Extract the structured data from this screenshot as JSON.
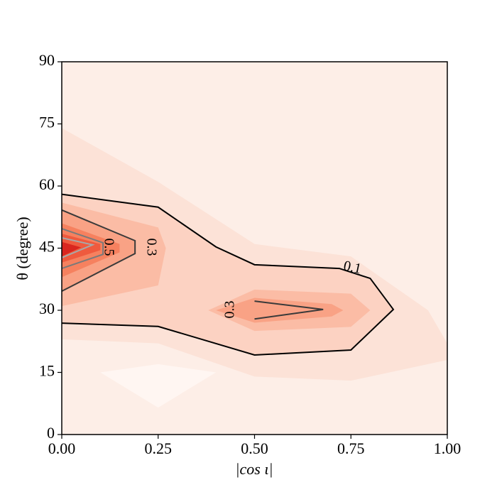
{
  "chart_data": {
    "type": "contour",
    "x_label": "|cos ι|",
    "y_label": "θ (degree)",
    "xlim": [
      0,
      1
    ],
    "ylim": [
      0,
      90
    ],
    "xticks": [
      {
        "value": 0,
        "label": "0.00"
      },
      {
        "value": 0.25,
        "label": "0.25"
      },
      {
        "value": 0.5,
        "label": "0.50"
      },
      {
        "value": 0.75,
        "label": "0.75"
      },
      {
        "value": 1,
        "label": "1.00"
      }
    ],
    "yticks": [
      0,
      15,
      30,
      45,
      60,
      75,
      90
    ],
    "background_color": "#fdeee7",
    "fills": [
      {
        "color": "#fff6f2",
        "x": [
          0.1,
          0.25,
          0.4,
          0.25
        ],
        "y": [
          15,
          17,
          15,
          6.5
        ]
      },
      {
        "color": "#fce2d7",
        "x": [
          0,
          0.25,
          0.5,
          0.75,
          0.95,
          1,
          1,
          0.75,
          0.5,
          0.25,
          0
        ],
        "y": [
          74,
          61,
          46,
          43,
          30,
          22,
          18,
          13,
          14,
          22,
          23
        ]
      },
      {
        "color": "#fcd2c2",
        "x": [
          0,
          0.25,
          0.4,
          0.5,
          0.72,
          0.8,
          0.86,
          0.75,
          0.5,
          0.25,
          0
        ],
        "y": [
          58,
          54.9,
          45.3,
          41,
          40.1,
          37.7,
          30.2,
          20.4,
          19.2,
          26.1,
          26.9
        ]
      },
      {
        "color": "#fbbca5",
        "x": [
          0,
          0.25,
          0.27,
          0.25,
          0
        ],
        "y": [
          56,
          50,
          45,
          36,
          31
        ]
      },
      {
        "color": "#fbbca5",
        "x": [
          0.38,
          0.5,
          0.75,
          0.8,
          0.75,
          0.5
        ],
        "y": [
          30,
          35,
          34,
          30,
          26,
          25
        ]
      },
      {
        "color": "#f9a285",
        "x": [
          0,
          0.19,
          0.19,
          0
        ],
        "y": [
          54.2,
          46.8,
          43.7,
          34.6
        ]
      },
      {
        "color": "#f9a285",
        "x": [
          0.4,
          0.5,
          0.7,
          0.73,
          0.7,
          0.5
        ],
        "y": [
          30,
          33,
          31.5,
          30,
          28.5,
          27
        ]
      },
      {
        "color": "#f6815f",
        "x": [
          0,
          0.15,
          0.15,
          0
        ],
        "y": [
          51,
          46,
          44,
          38
        ]
      },
      {
        "color": "#ef5a3e",
        "x": [
          0,
          0.1,
          0.1,
          0
        ],
        "y": [
          48.5,
          46,
          44.5,
          41.5
        ]
      },
      {
        "color": "#d9261f",
        "x": [
          0,
          0.05,
          0
        ],
        "y": [
          46.5,
          45.2,
          43
        ]
      }
    ],
    "contours": [
      {
        "level": 0.1,
        "label": "0.1",
        "color": "#000000",
        "x": [
          0,
          0.25,
          0.4,
          0.5,
          0.72,
          0.8,
          0.86,
          0.75,
          0.5,
          0.25,
          0
        ],
        "y": [
          58,
          54.9,
          45.3,
          41,
          40.1,
          37.7,
          30.2,
          20.4,
          19.2,
          26.1,
          26.9
        ]
      },
      {
        "level": 0.3,
        "label": "0.3",
        "color": "#3a3a3a",
        "x": [
          0,
          0.19,
          0.19,
          0
        ],
        "y": [
          54.2,
          46.8,
          43.7,
          34.6
        ]
      },
      {
        "level": 0.3,
        "label": "0.3",
        "color": "#3a3a3a",
        "x": [
          0.5,
          0.678,
          0.5
        ],
        "y": [
          32.2,
          30.2,
          27.9
        ]
      },
      {
        "level": 0.5,
        "label": "0.5",
        "color": "#7a7a7a",
        "x": [
          0,
          0.107,
          0.107,
          0
        ],
        "y": [
          49.7,
          46.3,
          43.5,
          40.1
        ]
      },
      {
        "level": 0.7,
        "color": "#a8a8a8",
        "x": [
          0,
          0.08,
          0
        ],
        "y": [
          47.5,
          45.8,
          42.7
        ]
      }
    ]
  }
}
